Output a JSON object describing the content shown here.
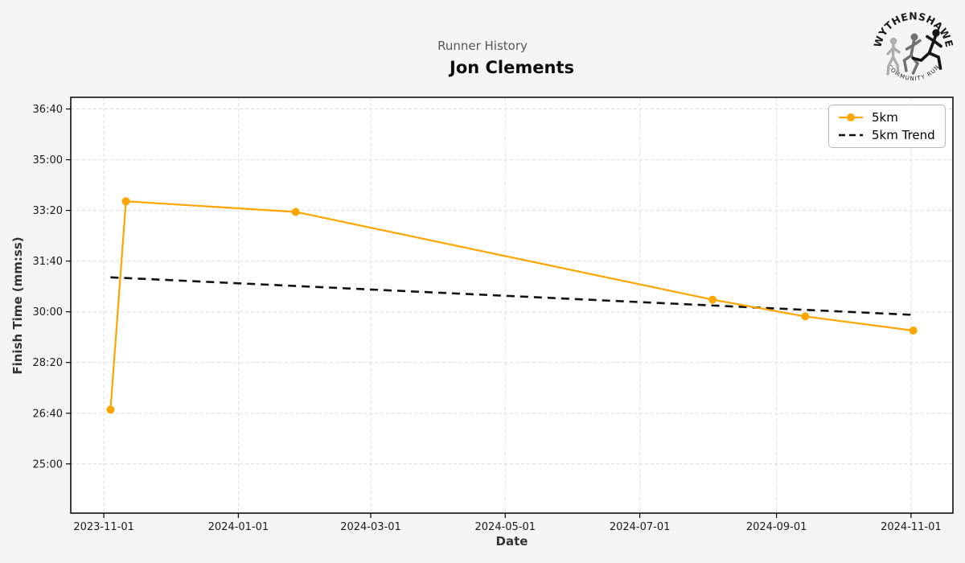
{
  "header": {
    "suptitle": "Runner History",
    "title": "Jon Clements"
  },
  "axes": {
    "x_label": "Date",
    "y_label": "Finish Time (mm:ss)"
  },
  "legend": {
    "items": [
      {
        "label": "5km"
      },
      {
        "label": "5km Trend"
      }
    ]
  },
  "logo": {
    "top_text": "WYTHENSHAWE",
    "bottom_text": "COMMUNITY RUN"
  },
  "colors": {
    "accent": "#FFA500",
    "trend": "#111111",
    "background": "#f5f5f6",
    "plot_bg": "#ffffff",
    "grid": "#dcdcdc",
    "spine": "#000000"
  },
  "chart_data": {
    "type": "line",
    "title": "Jon Clements",
    "subtitle": "Runner History",
    "xlabel": "Date",
    "ylabel": "Finish Time (mm:ss)",
    "grid": true,
    "legend_position": "upper right",
    "x_axis": {
      "tick_labels": [
        "2023-11-01",
        "2024-01-01",
        "2024-03-01",
        "2024-05-01",
        "2024-07-01",
        "2024-09-01",
        "2024-11-01"
      ],
      "range": [
        "2023-10-17",
        "2024-11-20"
      ]
    },
    "y_axis": {
      "tick_labels": [
        "25:00",
        "26:40",
        "28:20",
        "30:00",
        "31:40",
        "33:20",
        "35:00",
        "36:40"
      ],
      "range_seconds": [
        1403,
        2223
      ]
    },
    "series": [
      {
        "name": "5km",
        "color": "#FFA500",
        "style": "solid-markers",
        "points": [
          {
            "date": "2023-11-04",
            "time": "26:47"
          },
          {
            "date": "2023-11-11",
            "time": "33:38"
          },
          {
            "date": "2024-01-27",
            "time": "33:17"
          },
          {
            "date": "2024-08-03",
            "time": "30:24"
          },
          {
            "date": "2024-09-14",
            "time": "29:51"
          },
          {
            "date": "2024-11-02",
            "time": "29:23"
          }
        ]
      },
      {
        "name": "5km Trend",
        "color": "#111111",
        "style": "dashed",
        "points": [
          {
            "date": "2023-11-04",
            "time": "31:08"
          },
          {
            "date": "2024-11-02",
            "time": "29:54"
          }
        ]
      }
    ]
  }
}
